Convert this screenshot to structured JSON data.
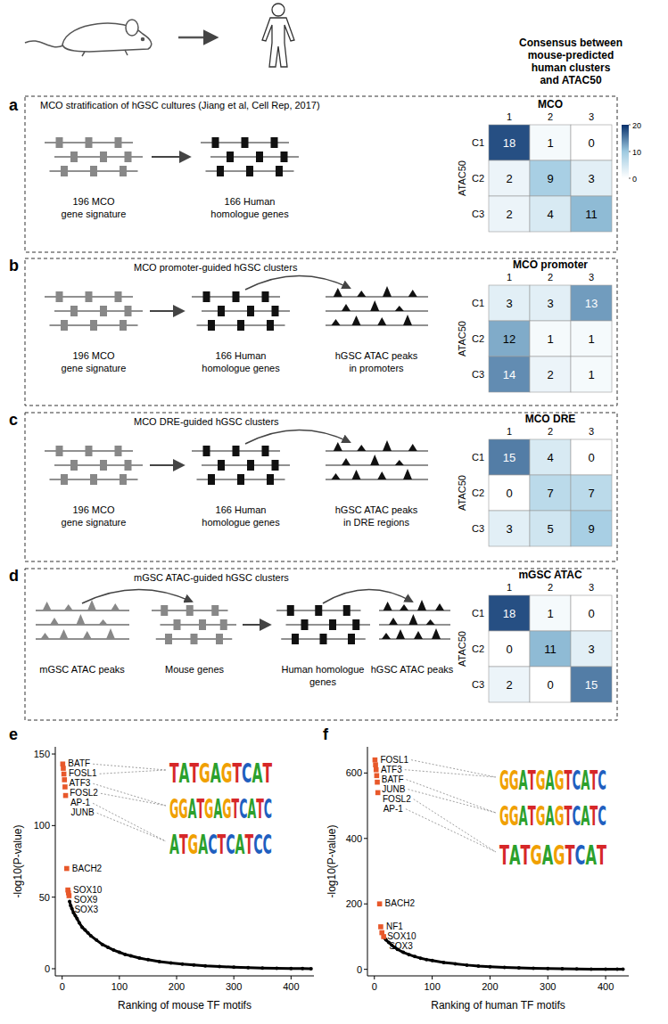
{
  "header": {
    "lines": [
      "Consensus between",
      "mouse-predicted",
      "human clusters",
      "and ATAC50"
    ]
  },
  "panel_letters": [
    "a",
    "b",
    "c",
    "d",
    "e",
    "f"
  ],
  "panels": [
    {
      "title": "MCO stratification of hGSC cultures (Jiang et al, Cell Rep, 2017)",
      "labels": [
        [
          "196 MCO",
          "gene signature"
        ],
        [
          "166 Human",
          "homologue genes"
        ]
      ]
    },
    {
      "title": "MCO promoter-guided hGSC clusters",
      "labels": [
        [
          "196 MCO",
          "gene signature"
        ],
        [
          "166 Human",
          "homologue genes"
        ],
        [
          "hGSC ATAC peaks",
          "in promoters"
        ]
      ]
    },
    {
      "title": "MCO DRE-guided hGSC clusters",
      "labels": [
        [
          "196 MCO",
          "gene signature"
        ],
        [
          "166 Human",
          "homologue genes"
        ],
        [
          "hGSC ATAC peaks",
          "in DRE regions"
        ]
      ]
    },
    {
      "title": "mGSC ATAC-guided hGSC clusters",
      "labels": [
        [
          "mGSC ATAC peaks"
        ],
        [
          "Mouse genes"
        ],
        [
          "Human homologue",
          "genes"
        ],
        [
          "hGSC ATAC peaks"
        ]
      ]
    }
  ],
  "chart_data": [
    {
      "type": "heatmap",
      "title": "MCO",
      "categories": [
        "1",
        "2",
        "3"
      ],
      "rows": [
        "C1",
        "C2",
        "C3"
      ],
      "ylabel": "ATAC50",
      "cells": [
        [
          18,
          1,
          0
        ],
        [
          2,
          9,
          3
        ],
        [
          2,
          4,
          11
        ]
      ],
      "data_labels": true,
      "color_range": [
        0,
        20
      ],
      "colorbar_ticks": [
        0,
        10,
        20
      ]
    },
    {
      "type": "heatmap",
      "title": "MCO promoter",
      "categories": [
        "1",
        "2",
        "3"
      ],
      "rows": [
        "C1",
        "C2",
        "C3"
      ],
      "ylabel": "ATAC50",
      "cells": [
        [
          3,
          3,
          13
        ],
        [
          12,
          1,
          1
        ],
        [
          14,
          2,
          1
        ]
      ],
      "data_labels": true,
      "color_range": [
        0,
        20
      ]
    },
    {
      "type": "heatmap",
      "title": "MCO DRE",
      "categories": [
        "1",
        "2",
        "3"
      ],
      "rows": [
        "C1",
        "C2",
        "C3"
      ],
      "ylabel": "ATAC50",
      "cells": [
        [
          15,
          4,
          0
        ],
        [
          0,
          7,
          7
        ],
        [
          3,
          5,
          9
        ]
      ],
      "data_labels": true,
      "color_range": [
        0,
        20
      ]
    },
    {
      "type": "heatmap",
      "title": "mGSC ATAC",
      "categories": [
        "1",
        "2",
        "3"
      ],
      "rows": [
        "C1",
        "C2",
        "C3"
      ],
      "ylabel": "ATAC50",
      "cells": [
        [
          18,
          1,
          0
        ],
        [
          0,
          11,
          3
        ],
        [
          2,
          0,
          15
        ]
      ],
      "data_labels": true,
      "color_range": [
        0,
        20
      ]
    },
    {
      "type": "scatter",
      "xlabel": "Ranking of mouse TF motifs",
      "ylabel": "-log10(P-value)",
      "xlim": [
        -12,
        440
      ],
      "ylim": [
        -5,
        155
      ],
      "xticks": [
        0,
        100,
        200,
        300,
        400
      ],
      "yticks": [
        0,
        50,
        100,
        150
      ],
      "series": [
        {
          "type": "line",
          "color": "#000000",
          "marker": "circle",
          "x": [
            13,
            15,
            17,
            20,
            23,
            26,
            30,
            35,
            40,
            45,
            50,
            60,
            70,
            80,
            90,
            100,
            110,
            120,
            135,
            150,
            170,
            190,
            210,
            230,
            250,
            275,
            300,
            325,
            350,
            375,
            400,
            420,
            435
          ],
          "values": [
            47,
            44,
            42,
            39,
            37,
            35,
            32,
            29,
            27,
            25,
            23,
            20,
            17,
            15,
            13,
            11.5,
            10,
            9,
            7.5,
            6.3,
            5,
            4,
            3.2,
            2.6,
            2,
            1.5,
            1.1,
            0.8,
            0.5,
            0.3,
            0.2,
            0.1,
            0.05
          ]
        },
        {
          "type": "scatter",
          "color": "#e8582a",
          "marker": "square",
          "x": [
            1,
            2,
            3,
            4,
            5,
            6,
            8,
            10,
            11,
            12
          ],
          "values": [
            143,
            140,
            136,
            132,
            127,
            121,
            70,
            55,
            53,
            51
          ],
          "labels": [
            "BATF",
            "FOSL1",
            "ATF3",
            "FOSL2",
            "AP-1",
            "JUNB",
            "BACH2",
            "SOX10",
            "SOX9",
            "SOX3"
          ]
        }
      ],
      "motif_logos": [
        "TATGAGTCAT",
        "GGATGAGTCATC",
        "ATGACTCATCC"
      ]
    },
    {
      "type": "scatter",
      "xlabel": "Ranking of human TF motifs",
      "ylabel": "-log10(P-value)",
      "xlim": [
        -12,
        440
      ],
      "ylim": [
        -20,
        680
      ],
      "xticks": [
        0,
        100,
        200,
        300,
        400
      ],
      "yticks": [
        0,
        200,
        400,
        600
      ],
      "series": [
        {
          "type": "line",
          "color": "#000000",
          "marker": "circle",
          "x": [
            18,
            20,
            25,
            30,
            35,
            40,
            50,
            60,
            70,
            80,
            90,
            100,
            120,
            140,
            160,
            180,
            200,
            225,
            250,
            275,
            300,
            325,
            350,
            375,
            400,
            420,
            430
          ],
          "values": [
            95,
            90,
            82,
            74,
            67,
            61,
            52,
            45,
            39,
            34,
            30,
            27,
            21,
            17,
            13,
            10,
            8,
            6,
            4.5,
            3.3,
            2.4,
            1.7,
            1.1,
            0.7,
            0.4,
            0.2,
            0.1
          ]
        },
        {
          "type": "scatter",
          "color": "#e8582a",
          "marker": "square",
          "x": [
            1,
            2,
            3,
            4,
            5,
            6,
            9,
            11,
            13,
            16
          ],
          "values": [
            640,
            625,
            610,
            592,
            572,
            540,
            200,
            130,
            112,
            100
          ],
          "labels": [
            "FOSL1",
            "ATF3",
            "BATF",
            "JUNB",
            "FOSL2",
            "AP-1",
            "BACH2",
            "NF1",
            "SOX10",
            "SOX3"
          ]
        }
      ],
      "motif_logos": [
        "GGATGAGTCATC",
        "GGATGAGTCATC",
        "TATGAGTCAT"
      ]
    }
  ]
}
